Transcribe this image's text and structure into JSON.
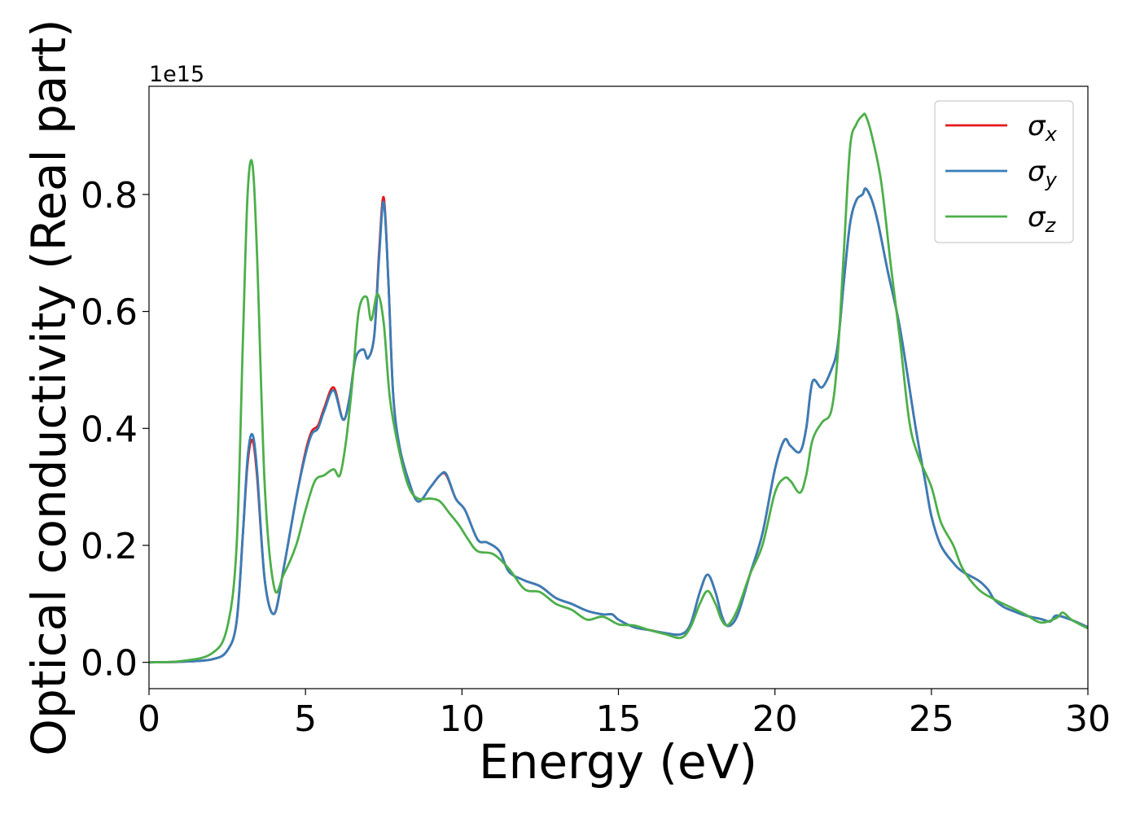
{
  "chart_data": {
    "type": "line",
    "xlabel": "Energy (eV)",
    "ylabel": "Optical conductivity (Real part)",
    "y_offset_label": "1e15",
    "xlim": [
      0,
      30
    ],
    "ylim": [
      -0.045,
      0.985
    ],
    "xticks": [
      0,
      5,
      10,
      15,
      20,
      25,
      30
    ],
    "xtick_labels": [
      "0",
      "5",
      "10",
      "15",
      "20",
      "25",
      "30"
    ],
    "yticks": [
      0.0,
      0.2,
      0.4,
      0.6,
      0.8
    ],
    "ytick_labels": [
      "0.0",
      "0.2",
      "0.4",
      "0.6",
      "0.8"
    ],
    "grid": false,
    "legend_position": "top-right",
    "series": [
      {
        "name": "σx",
        "sym": "σ",
        "sub": "x",
        "color": "#e41a1c",
        "x": [
          0,
          1,
          2,
          2.5,
          2.8,
          3.0,
          3.15,
          3.3,
          3.45,
          3.7,
          4.0,
          4.3,
          4.7,
          5.0,
          5.2,
          5.4,
          5.6,
          5.9,
          6.2,
          6.4,
          6.6,
          6.85,
          7.0,
          7.2,
          7.35,
          7.5,
          7.65,
          7.8,
          8.0,
          8.3,
          8.6,
          9.0,
          9.3,
          9.5,
          9.8,
          10.1,
          10.5,
          10.8,
          11.2,
          11.5,
          12.0,
          12.5,
          13.0,
          13.5,
          14.0,
          14.5,
          14.8,
          15.0,
          15.5,
          16.0,
          16.5,
          17.0,
          17.3,
          17.6,
          17.85,
          18.1,
          18.3,
          18.5,
          18.8,
          19.2,
          19.6,
          20.0,
          20.3,
          20.5,
          20.8,
          21.0,
          21.2,
          21.5,
          21.8,
          22.0,
          22.2,
          22.4,
          22.6,
          22.8,
          22.9,
          23.1,
          23.3,
          23.6,
          24.0,
          24.5,
          24.8,
          25.0,
          25.3,
          25.7,
          26.0,
          26.5,
          26.8,
          27.0,
          27.3,
          27.6,
          28.0,
          28.5,
          28.8,
          29.0,
          29.5,
          30.0
        ],
        "values": [
          0.0,
          0.001,
          0.005,
          0.02,
          0.07,
          0.22,
          0.34,
          0.38,
          0.32,
          0.14,
          0.083,
          0.16,
          0.28,
          0.36,
          0.395,
          0.405,
          0.435,
          0.47,
          0.415,
          0.45,
          0.52,
          0.535,
          0.52,
          0.56,
          0.7,
          0.795,
          0.65,
          0.46,
          0.37,
          0.31,
          0.275,
          0.3,
          0.32,
          0.32,
          0.28,
          0.26,
          0.21,
          0.205,
          0.19,
          0.155,
          0.14,
          0.13,
          0.11,
          0.1,
          0.088,
          0.082,
          0.082,
          0.073,
          0.06,
          0.055,
          0.05,
          0.048,
          0.065,
          0.12,
          0.15,
          0.12,
          0.08,
          0.062,
          0.08,
          0.15,
          0.22,
          0.33,
          0.38,
          0.37,
          0.36,
          0.4,
          0.48,
          0.47,
          0.5,
          0.54,
          0.65,
          0.75,
          0.79,
          0.8,
          0.81,
          0.79,
          0.75,
          0.67,
          0.57,
          0.4,
          0.31,
          0.25,
          0.2,
          0.17,
          0.155,
          0.14,
          0.125,
          0.108,
          0.095,
          0.088,
          0.08,
          0.074,
          0.07,
          0.08,
          0.072,
          0.06
        ]
      },
      {
        "name": "σy",
        "sym": "σ",
        "sub": "y",
        "color": "#377eb8",
        "x": [
          0,
          1,
          2,
          2.5,
          2.8,
          3.0,
          3.15,
          3.3,
          3.45,
          3.7,
          4.0,
          4.3,
          4.7,
          5.0,
          5.2,
          5.4,
          5.6,
          5.9,
          6.2,
          6.4,
          6.6,
          6.85,
          7.0,
          7.2,
          7.35,
          7.5,
          7.65,
          7.8,
          8.0,
          8.3,
          8.6,
          9.0,
          9.3,
          9.5,
          9.8,
          10.1,
          10.5,
          10.8,
          11.2,
          11.5,
          12.0,
          12.5,
          13.0,
          13.5,
          14.0,
          14.5,
          14.8,
          15.0,
          15.5,
          16.0,
          16.5,
          17.0,
          17.3,
          17.6,
          17.85,
          18.1,
          18.3,
          18.5,
          18.8,
          19.2,
          19.6,
          20.0,
          20.3,
          20.5,
          20.8,
          21.0,
          21.2,
          21.5,
          21.8,
          22.0,
          22.2,
          22.4,
          22.6,
          22.8,
          22.9,
          23.1,
          23.3,
          23.6,
          24.0,
          24.5,
          24.8,
          25.0,
          25.3,
          25.7,
          26.0,
          26.5,
          26.8,
          27.0,
          27.3,
          27.6,
          28.0,
          28.5,
          28.8,
          29.0,
          29.5,
          30.0
        ],
        "values": [
          0.0,
          0.001,
          0.005,
          0.02,
          0.07,
          0.22,
          0.35,
          0.39,
          0.33,
          0.14,
          0.083,
          0.16,
          0.28,
          0.355,
          0.39,
          0.4,
          0.43,
          0.465,
          0.415,
          0.45,
          0.52,
          0.535,
          0.52,
          0.56,
          0.69,
          0.787,
          0.65,
          0.46,
          0.37,
          0.31,
          0.275,
          0.3,
          0.32,
          0.322,
          0.28,
          0.26,
          0.21,
          0.205,
          0.19,
          0.155,
          0.14,
          0.13,
          0.11,
          0.1,
          0.088,
          0.082,
          0.082,
          0.073,
          0.06,
          0.055,
          0.05,
          0.048,
          0.065,
          0.12,
          0.15,
          0.12,
          0.08,
          0.062,
          0.08,
          0.15,
          0.22,
          0.33,
          0.38,
          0.37,
          0.36,
          0.4,
          0.48,
          0.47,
          0.5,
          0.54,
          0.65,
          0.75,
          0.79,
          0.8,
          0.81,
          0.79,
          0.75,
          0.67,
          0.57,
          0.4,
          0.31,
          0.25,
          0.2,
          0.17,
          0.155,
          0.14,
          0.125,
          0.108,
          0.095,
          0.088,
          0.08,
          0.074,
          0.07,
          0.08,
          0.072,
          0.06
        ]
      },
      {
        "name": "σz",
        "sym": "σ",
        "sub": "z",
        "color": "#4daf4a",
        "x": [
          0,
          1,
          2,
          2.5,
          2.8,
          3.0,
          3.15,
          3.3,
          3.45,
          3.7,
          4.0,
          4.3,
          4.7,
          5.0,
          5.3,
          5.6,
          5.9,
          6.1,
          6.3,
          6.5,
          6.7,
          6.95,
          7.1,
          7.3,
          7.5,
          7.7,
          8.0,
          8.3,
          8.6,
          9.0,
          9.3,
          9.6,
          9.9,
          10.2,
          10.5,
          11.0,
          11.5,
          12.0,
          12.5,
          13.0,
          13.5,
          14.0,
          14.5,
          15.0,
          15.5,
          16.0,
          16.5,
          17.0,
          17.3,
          17.6,
          17.85,
          18.1,
          18.3,
          18.5,
          18.8,
          19.2,
          19.6,
          20.0,
          20.3,
          20.5,
          20.8,
          21.0,
          21.2,
          21.5,
          21.8,
          22.0,
          22.2,
          22.4,
          22.6,
          22.8,
          22.9,
          23.1,
          23.4,
          23.7,
          24.0,
          24.3,
          24.6,
          25.0,
          25.3,
          25.7,
          26.0,
          26.5,
          27.0,
          27.5,
          28.0,
          28.5,
          29.0,
          29.2,
          29.5,
          30.0
        ],
        "values": [
          0.0,
          0.002,
          0.015,
          0.06,
          0.2,
          0.55,
          0.8,
          0.853,
          0.7,
          0.3,
          0.128,
          0.15,
          0.2,
          0.26,
          0.31,
          0.32,
          0.33,
          0.32,
          0.38,
          0.48,
          0.6,
          0.625,
          0.585,
          0.63,
          0.58,
          0.45,
          0.36,
          0.3,
          0.28,
          0.28,
          0.275,
          0.255,
          0.235,
          0.21,
          0.19,
          0.185,
          0.16,
          0.125,
          0.12,
          0.1,
          0.09,
          0.073,
          0.078,
          0.065,
          0.063,
          0.055,
          0.048,
          0.042,
          0.06,
          0.1,
          0.122,
          0.1,
          0.072,
          0.064,
          0.09,
          0.15,
          0.2,
          0.29,
          0.315,
          0.31,
          0.29,
          0.32,
          0.38,
          0.41,
          0.43,
          0.52,
          0.7,
          0.88,
          0.92,
          0.935,
          0.935,
          0.9,
          0.82,
          0.68,
          0.55,
          0.41,
          0.35,
          0.3,
          0.24,
          0.2,
          0.16,
          0.125,
          0.108,
          0.095,
          0.082,
          0.068,
          0.076,
          0.085,
          0.072,
          0.058
        ]
      }
    ]
  }
}
